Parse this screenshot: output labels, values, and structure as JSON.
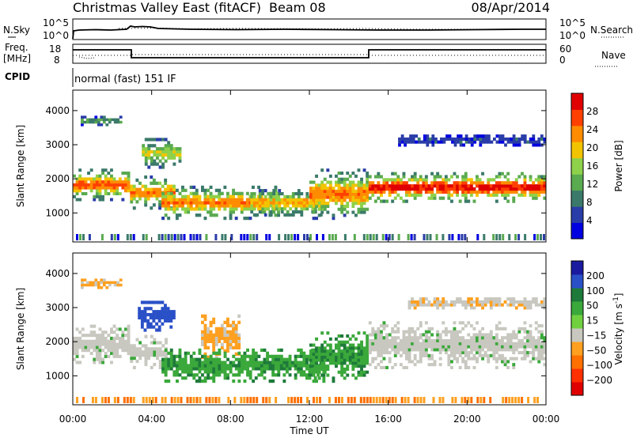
{
  "header": {
    "title": "Christmas Valley East (fitACF)",
    "beam": "Beam 08",
    "date": "08/Apr/2014"
  },
  "panels": {
    "nsky": {
      "label": "N.Sky",
      "right_label": "N.Search",
      "left_ticks": [
        "10^5",
        "10^0"
      ],
      "right_ticks": [
        "10^5",
        "10^0"
      ]
    },
    "freq": {
      "label_line1": "Freq.",
      "label_line2": "[MHz]",
      "right_label": "Nave",
      "left_ticks": [
        "18",
        "8"
      ],
      "right_ticks": [
        "60",
        "0"
      ]
    },
    "cpid": {
      "label": "CPID",
      "text": "normal (fast) 151 IF"
    }
  },
  "colors": {
    "power_scale": [
      "#0000e0",
      "#2a3ca8",
      "#3b7a6a",
      "#5aaa50",
      "#8ed14a",
      "#f2c400",
      "#ff8c00",
      "#ff4000",
      "#e00000"
    ],
    "velocity_scale": [
      "#1a1aa0",
      "#2a50c8",
      "#1e7a3a",
      "#3aa83a",
      "#70d040",
      "#c8c8c0",
      "#ffa020",
      "#ff7000",
      "#ff3000",
      "#e00000"
    ],
    "ground_scatter": "#c8c8c0"
  },
  "chart_data": [
    {
      "type": "heatmap",
      "name": "power",
      "xlabel": "Time UT",
      "ylabel": "Slant Range [km]",
      "xlim": [
        0,
        24
      ],
      "ylim": [
        150,
        4600
      ],
      "xticks": [
        "00:00",
        "04:00",
        "08:00",
        "12:00",
        "16:00",
        "20:00",
        "00:00"
      ],
      "yticks": [
        1000,
        2000,
        3000,
        4000
      ],
      "colorbar": {
        "label": "Power [dB]",
        "range": [
          0,
          32
        ],
        "ticks": [
          4,
          8,
          12,
          16,
          20,
          24,
          28
        ]
      },
      "features": [
        {
          "t0": 0.0,
          "t1": 2.9,
          "r0": 1350,
          "r1": 2300,
          "peak_db": 26
        },
        {
          "t0": 0.4,
          "t1": 2.5,
          "r0": 3550,
          "r1": 3850,
          "peak_db": 12
        },
        {
          "t0": 2.9,
          "t1": 5.2,
          "r0": 1100,
          "r1": 2100,
          "peak_db": 24
        },
        {
          "t0": 3.5,
          "t1": 5.5,
          "r0": 2300,
          "r1": 3200,
          "peak_db": 18
        },
        {
          "t0": 4.5,
          "t1": 10.5,
          "r0": 800,
          "r1": 1800,
          "peak_db": 24
        },
        {
          "t0": 9.0,
          "t1": 12.8,
          "r0": 900,
          "r1": 1700,
          "peak_db": 22
        },
        {
          "t0": 12.0,
          "t1": 15.0,
          "r0": 800,
          "r1": 2300,
          "peak_db": 24
        },
        {
          "t0": 15.0,
          "t1": 24.0,
          "r0": 1300,
          "r1": 2200,
          "peak_db": 30
        },
        {
          "t0": 16.5,
          "t1": 24.0,
          "r0": 2950,
          "r1": 3300,
          "peak_db": 6
        }
      ]
    },
    {
      "type": "heatmap",
      "name": "velocity",
      "xlabel": "Time UT",
      "ylabel": "Slant Range [km]",
      "xlim": [
        0,
        24
      ],
      "ylim": [
        150,
        4600
      ],
      "xticks": [
        "00:00",
        "04:00",
        "08:00",
        "12:00",
        "16:00",
        "20:00",
        "00:00"
      ],
      "yticks": [
        1000,
        2000,
        3000,
        4000
      ],
      "colorbar": {
        "label": "Velocity [m s^-1]",
        "range": [
          -250,
          250
        ],
        "ticks": [
          200,
          100,
          50,
          15,
          -15,
          -50,
          -100,
          -200
        ]
      },
      "features": [
        {
          "t0": 0.0,
          "t1": 2.9,
          "r0": 1350,
          "r1": 2500,
          "vel": 0
        },
        {
          "t0": 0.4,
          "t1": 2.5,
          "r0": 3550,
          "r1": 3850,
          "vel": -60
        },
        {
          "t0": 2.9,
          "t1": 4.8,
          "r0": 1200,
          "r1": 2200,
          "vel": 0
        },
        {
          "t0": 3.3,
          "t1": 5.2,
          "r0": 2300,
          "r1": 3200,
          "vel": 180
        },
        {
          "t0": 6.5,
          "t1": 8.5,
          "r0": 1500,
          "r1": 2800,
          "vel": -60
        },
        {
          "t0": 4.5,
          "t1": 12.8,
          "r0": 800,
          "r1": 1800,
          "vel": 40
        },
        {
          "t0": 12.0,
          "t1": 15.0,
          "r0": 800,
          "r1": 2300,
          "vel": 40
        },
        {
          "t0": 15.0,
          "t1": 24.0,
          "r0": 1200,
          "r1": 2600,
          "vel": 0
        },
        {
          "t0": 17.0,
          "t1": 24.0,
          "r0": 2950,
          "r1": 3300,
          "vel": -40
        }
      ]
    }
  ]
}
